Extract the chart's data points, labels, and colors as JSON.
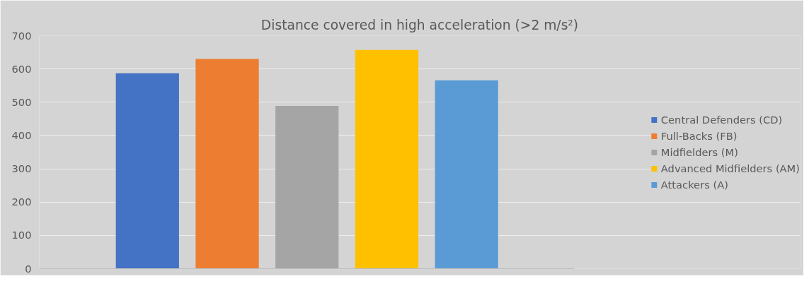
{
  "chart_data": {
    "type": "bar",
    "title": "Distance covered in high acceleration (>2 m/s²)",
    "categories": [
      null
    ],
    "series": [
      {
        "name": "Central Defenders (CD)",
        "color": "#4472c4",
        "values": [
          587
        ]
      },
      {
        "name": "Full-Backs (FB)",
        "color": "#ed7d31",
        "values": [
          630
        ]
      },
      {
        "name": "Midfielders (M)",
        "color": "#a5a5a5",
        "values": [
          489
        ]
      },
      {
        "name": "Advanced Midfielders (AM)",
        "color": "#ffc000",
        "values": [
          657
        ]
      },
      {
        "name": "Attackers (A)",
        "color": "#5b9bd5",
        "values": [
          566
        ]
      }
    ],
    "ylim": [
      0,
      700
    ],
    "yticks": [
      0,
      100,
      200,
      300,
      400,
      500,
      600,
      700
    ],
    "grid": "y",
    "legend": "right"
  }
}
